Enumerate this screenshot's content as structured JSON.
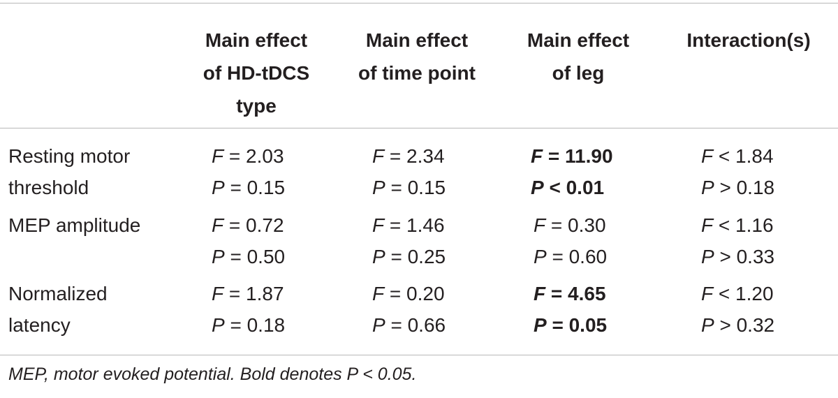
{
  "table": {
    "headers": [
      {
        "lines": [
          "Main effect",
          "of HD-tDCS",
          "type"
        ]
      },
      {
        "lines": [
          "Main effect",
          "of time point"
        ]
      },
      {
        "lines": [
          "Main effect",
          "of leg"
        ]
      },
      {
        "lines": [
          "Interaction(s)"
        ]
      }
    ],
    "rows": [
      {
        "label": [
          "Resting motor",
          "threshold"
        ],
        "cells": [
          {
            "F": "F = 2.03",
            "P": "P = 0.15",
            "bold": false
          },
          {
            "F": "F = 2.34",
            "P": "P = 0.15",
            "bold": false
          },
          {
            "F": "F = 11.90",
            "P": "P < 0.01",
            "bold": true
          },
          {
            "F": "F < 1.84",
            "P": "P > 0.18",
            "bold": false
          }
        ]
      },
      {
        "label": [
          "MEP amplitude"
        ],
        "cells": [
          {
            "F": "F = 0.72",
            "P": "P = 0.50",
            "bold": false
          },
          {
            "F": "F = 1.46",
            "P": "P = 0.25",
            "bold": false
          },
          {
            "F": "F = 0.30",
            "P": "P = 0.60",
            "bold": false
          },
          {
            "F": "F < 1.16",
            "P": "P > 0.33",
            "bold": false
          }
        ]
      },
      {
        "label": [
          "Normalized",
          "latency"
        ],
        "cells": [
          {
            "F": "F = 1.87",
            "P": "P = 0.18",
            "bold": false
          },
          {
            "F": "F = 0.20",
            "P": "P = 0.66",
            "bold": false
          },
          {
            "F": "F = 4.65",
            "P": "P = 0.05",
            "bold": true
          },
          {
            "F": "F < 1.20",
            "P": "P > 0.32",
            "bold": false
          }
        ]
      }
    ],
    "footnote": "MEP, motor evoked potential. Bold denotes P < 0.05."
  }
}
